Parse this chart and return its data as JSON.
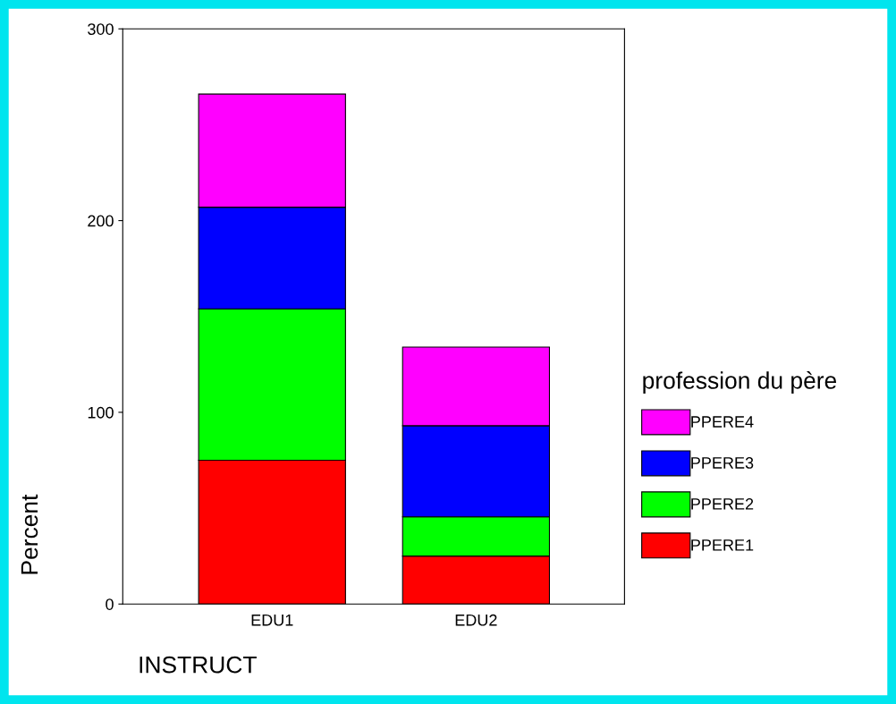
{
  "chart_data": {
    "type": "bar",
    "stacked": true,
    "categories": [
      "EDU1",
      "EDU2"
    ],
    "series": [
      {
        "name": "PPERE1",
        "color": "#ff0000",
        "values": [
          75,
          25
        ]
      },
      {
        "name": "PPERE2",
        "color": "#00ff00",
        "values": [
          79,
          20.5
        ]
      },
      {
        "name": "PPERE3",
        "color": "#0000ff",
        "values": [
          53,
          47.5
        ]
      },
      {
        "name": "PPERE4",
        "color": "#ff00ff",
        "values": [
          59,
          41
        ]
      }
    ],
    "xlabel": "INSTRUCT",
    "ylabel": "Percent",
    "legend_title": "profession du père",
    "ylim": [
      0,
      300
    ],
    "yticks": [
      0,
      100,
      200,
      300
    ],
    "grid": false,
    "legend": "right"
  }
}
